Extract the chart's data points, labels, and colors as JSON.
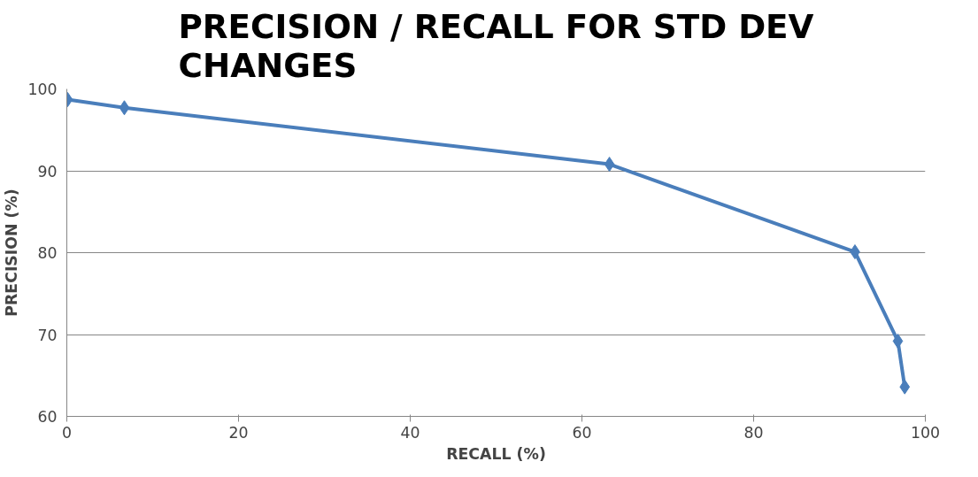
{
  "chart_data": {
    "type": "line",
    "title": "PRECISION / RECALL FOR STD DEV\nCHANGES",
    "xlabel": "RECALL (%)",
    "ylabel": "PRECISION (%)",
    "x": [
      0.1,
      6.7,
      63.2,
      91.8,
      96.8,
      97.6
    ],
    "series": [
      {
        "color": "#4a7ebb",
        "values": [
          98.7,
          97.7,
          90.8,
          80.1,
          69.2,
          63.6
        ]
      }
    ],
    "xlim": [
      0,
      100
    ],
    "xticks": [
      0,
      20,
      40,
      60,
      80,
      100
    ],
    "ylim": [
      60,
      100
    ],
    "yticks": [
      60,
      70,
      80,
      90,
      100
    ],
    "grid": "y",
    "marker": "diamond",
    "line_style": "solid"
  }
}
